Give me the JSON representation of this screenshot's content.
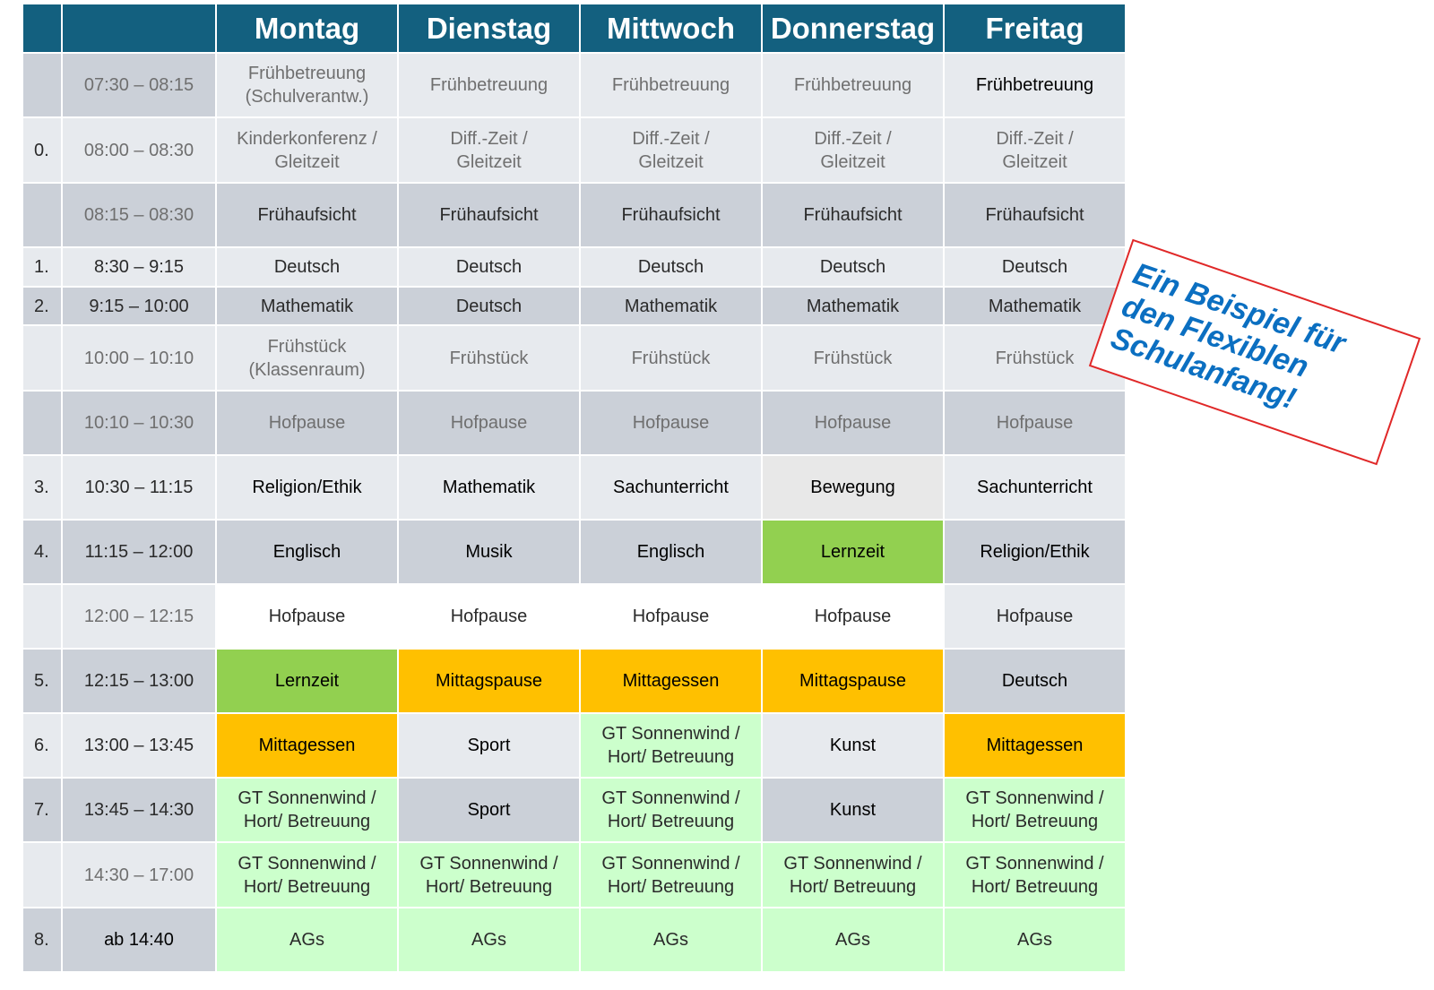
{
  "header": {
    "col_num": "",
    "col_time": "",
    "days": [
      "Montag",
      "Dienstag",
      "Mittwoch",
      "Donnerstag",
      "Freitag"
    ]
  },
  "rows": [
    {
      "num": "",
      "time": "07:30 – 08:15",
      "cells": [
        "Frühbetreuung\n(Schulverantw.)",
        "Frühbetreuung",
        "Frühbetreuung",
        "Frühbetreuung",
        "Frühbetreuung"
      ]
    },
    {
      "num": "0.",
      "time": "08:00 – 08:30",
      "cells": [
        "Kinderkonferenz /\nGleitzeit",
        "Diff.-Zeit /\nGleitzeit",
        "Diff.-Zeit /\nGleitzeit",
        "Diff.-Zeit /\nGleitzeit",
        "Diff.-Zeit /\nGleitzeit"
      ]
    },
    {
      "num": "",
      "time": "08:15 – 08:30",
      "cells": [
        "Frühaufsicht",
        "Frühaufsicht",
        "Frühaufsicht",
        "Frühaufsicht",
        "Frühaufsicht"
      ]
    },
    {
      "num": "1.",
      "time": "8:30 – 9:15",
      "cells": [
        "Deutsch",
        "Deutsch",
        "Deutsch",
        "Deutsch",
        "Deutsch"
      ]
    },
    {
      "num": "2.",
      "time": "9:15 – 10:00",
      "cells": [
        "Mathematik",
        "Deutsch",
        "Mathematik",
        "Mathematik",
        "Mathematik"
      ]
    },
    {
      "num": "",
      "time": "10:00 – 10:10",
      "cells": [
        "Frühstück\n(Klassenraum)",
        "Frühstück",
        "Frühstück",
        "Frühstück",
        "Frühstück"
      ]
    },
    {
      "num": "",
      "time": "10:10 – 10:30",
      "cells": [
        "Hofpause",
        "Hofpause",
        "Hofpause",
        "Hofpause",
        "Hofpause"
      ]
    },
    {
      "num": "3.",
      "time": "10:30 – 11:15",
      "cells": [
        "Religion/Ethik",
        "Mathematik",
        "Sachunterricht",
        "Bewegung",
        "Sachunterricht"
      ]
    },
    {
      "num": "4.",
      "time": "11:15 – 12:00",
      "cells": [
        "Englisch",
        "Musik",
        "Englisch",
        "Lernzeit",
        "Religion/Ethik"
      ]
    },
    {
      "num": "",
      "time": "12:00 – 12:15",
      "cells": [
        "Hofpause",
        "Hofpause",
        "Hofpause",
        "Hofpause",
        "Hofpause"
      ]
    },
    {
      "num": "5.",
      "time": "12:15 – 13:00",
      "cells": [
        "Lernzeit",
        "Mittagspause",
        "Mittagessen",
        "Mittagspause",
        "Deutsch"
      ]
    },
    {
      "num": "6.",
      "time": "13:00 – 13:45",
      "cells": [
        "Mittagessen",
        "Sport",
        "GT Sonnenwind /\nHort/ Betreuung",
        "Kunst",
        "Mittagessen"
      ]
    },
    {
      "num": "7.",
      "time": "13:45 – 14:30",
      "cells": [
        "GT Sonnenwind /\nHort/ Betreuung",
        "Sport",
        "GT Sonnenwind /\nHort/ Betreuung",
        "Kunst",
        "GT Sonnenwind /\nHort/ Betreuung"
      ]
    },
    {
      "num": "",
      "time": "14:30 – 17:00",
      "cells": [
        "GT Sonnenwind /\nHort/ Betreuung",
        "GT Sonnenwind  /\nHort/ Betreuung",
        "GT Sonnenwind  /\nHort/ Betreuung",
        "GT Sonnenwind  /\nHort/ Betreuung",
        "GT Sonnenwind  /\nHort/ Betreuung"
      ]
    },
    {
      "num": "8.",
      "time": "ab 14:40",
      "cells": [
        "AGs",
        "AGs",
        "AGs",
        "AGs",
        "AGs"
      ]
    }
  ],
  "stamp": {
    "text": "Ein Beispiel für\nden Flexiblen\nSchulanfang!"
  },
  "colors": {
    "header_bg": "#13607f",
    "row_dark": "#cbd0d8",
    "row_light": "#e7eaee",
    "lernzeit_green": "#92d050",
    "meal_orange": "#ffc000",
    "care_mint": "#ccffcc",
    "stamp_border": "#e02828",
    "stamp_text": "#0b6fc1"
  }
}
